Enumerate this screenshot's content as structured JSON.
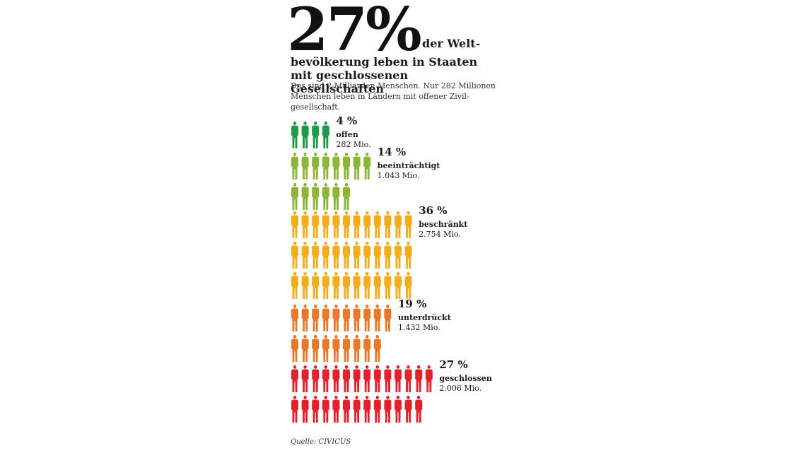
{
  "header": {
    "big_number": "27%",
    "headline_tail": "der Welt-",
    "headline_rest": "bevölkerung leben in Staaten mit geschlossenen Gesellschaften",
    "subline": "Das sind 2 Milliarden Menschen. Nur 282 Millionen Menschen leben in Ländern mit offener Zivil-gesellschaft."
  },
  "chart_data": {
    "type": "pictogram",
    "series": [
      {
        "percent_label": "4 %",
        "category": "offen",
        "value_label": "282 Mio.",
        "percent": 4,
        "value_millions": 282,
        "icon_rows": [
          4
        ],
        "color": "#1e9a48"
      },
      {
        "percent_label": "14 %",
        "category": "beeinträchtigt",
        "value_label": "1.043 Mio.",
        "percent": 14,
        "value_millions": 1043,
        "icon_rows": [
          8,
          6
        ],
        "color": "#8db537"
      },
      {
        "percent_label": "36 %",
        "category": "beschränkt",
        "value_label": "2.754 Mio.",
        "percent": 36,
        "value_millions": 2754,
        "icon_rows": [
          12,
          12,
          12
        ],
        "color": "#f3ac1c"
      },
      {
        "percent_label": "19 %",
        "category": "unterdrückt",
        "value_label": "1.432 Mio.",
        "percent": 19,
        "value_millions": 1432,
        "icon_rows": [
          10,
          9
        ],
        "color": "#e8782a"
      },
      {
        "percent_label": "27 %",
        "category": "geschlossen",
        "value_label": "2.006 Mio.",
        "percent": 27,
        "value_millions": 2006,
        "icon_rows": [
          14,
          13
        ],
        "color": "#e3202b"
      }
    ]
  },
  "footer": {
    "source": "Quelle: CIVICUS"
  }
}
